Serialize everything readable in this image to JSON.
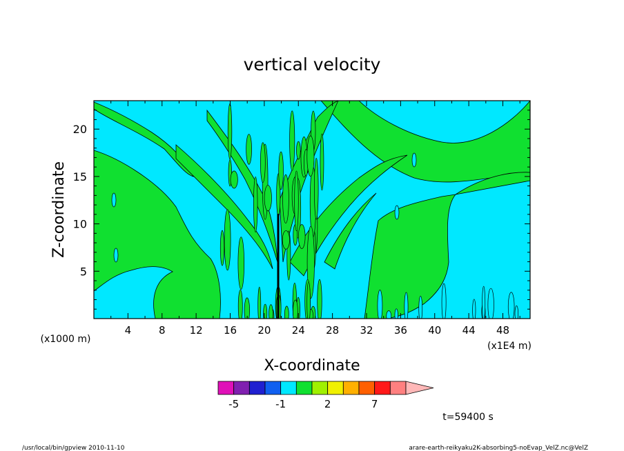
{
  "chart_data": {
    "type": "heatmap",
    "title": "vertical velocity",
    "xlabel": "X-coordinate",
    "ylabel": "Z-coordinate",
    "x_unit_left": "(x1000 m)",
    "x_unit_right": "(x1E4 m)",
    "xlim": [
      0,
      51.2
    ],
    "ylim": [
      0,
      23
    ],
    "x_ticks": [
      "4",
      "8",
      "12",
      "16",
      "20",
      "24",
      "28",
      "32",
      "36",
      "40",
      "44",
      "48"
    ],
    "x_tick_values": [
      4,
      8,
      12,
      16,
      20,
      24,
      28,
      32,
      36,
      40,
      44,
      48
    ],
    "y_ticks": [
      "5",
      "10",
      "15",
      "20"
    ],
    "y_tick_values": [
      5,
      10,
      15,
      20
    ],
    "colorbar": {
      "labels": [
        "-5",
        "-1",
        "2",
        "7"
      ],
      "label_levels": [
        -5,
        -1,
        2,
        7
      ],
      "levels": [
        -7,
        -5,
        -3,
        -2,
        -1,
        0,
        1,
        2,
        3,
        5,
        7,
        10,
        15
      ],
      "colors": [
        "#e010b8",
        "#8020b0",
        "#2020d0",
        "#1060f0",
        "#00e8ff",
        "#10e030",
        "#a0f000",
        "#f0f000",
        "#ffb000",
        "#ff6000",
        "#ff1818",
        "#ff8080",
        "#ffb8b8"
      ]
    },
    "field_colors": {
      "negative": "#00e8ff",
      "positive": "#10e030",
      "contour": "#000000"
    },
    "time_label": "t=59400 s"
  },
  "footer": {
    "left": "/usr/local/bin/gpview  2010-11-10",
    "right": "arare-earth-reikyaku2K-absorbing5-noEvap_VelZ.nc@VelZ"
  }
}
